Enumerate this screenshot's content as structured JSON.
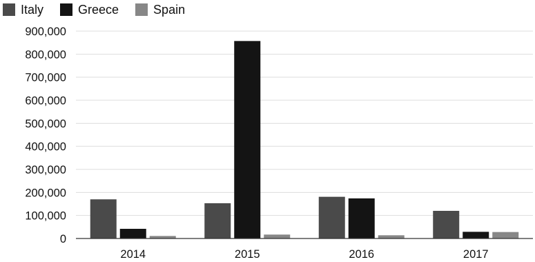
{
  "chart_data": {
    "type": "bar",
    "categories": [
      "2014",
      "2015",
      "2016",
      "2017"
    ],
    "series": [
      {
        "name": "Italy",
        "color": "#4a4a4a",
        "values": [
          170000,
          153000,
          181000,
          120000
        ]
      },
      {
        "name": "Greece",
        "color": "#141414",
        "values": [
          42000,
          857000,
          174000,
          29000
        ]
      },
      {
        "name": "Spain",
        "color": "#878787",
        "values": [
          11000,
          17000,
          14000,
          28000
        ]
      }
    ],
    "ylim": [
      0,
      900000
    ],
    "yticks": [
      0,
      100000,
      200000,
      300000,
      400000,
      500000,
      600000,
      700000,
      800000,
      900000
    ],
    "ytick_labels": [
      "0",
      "100,000",
      "200,000",
      "300,000",
      "400,000",
      "500,000",
      "600,000",
      "700,000",
      "800,000",
      "900,000"
    ],
    "grid": true,
    "legend_position": "top-left",
    "title": "",
    "xlabel": "",
    "ylabel": ""
  }
}
